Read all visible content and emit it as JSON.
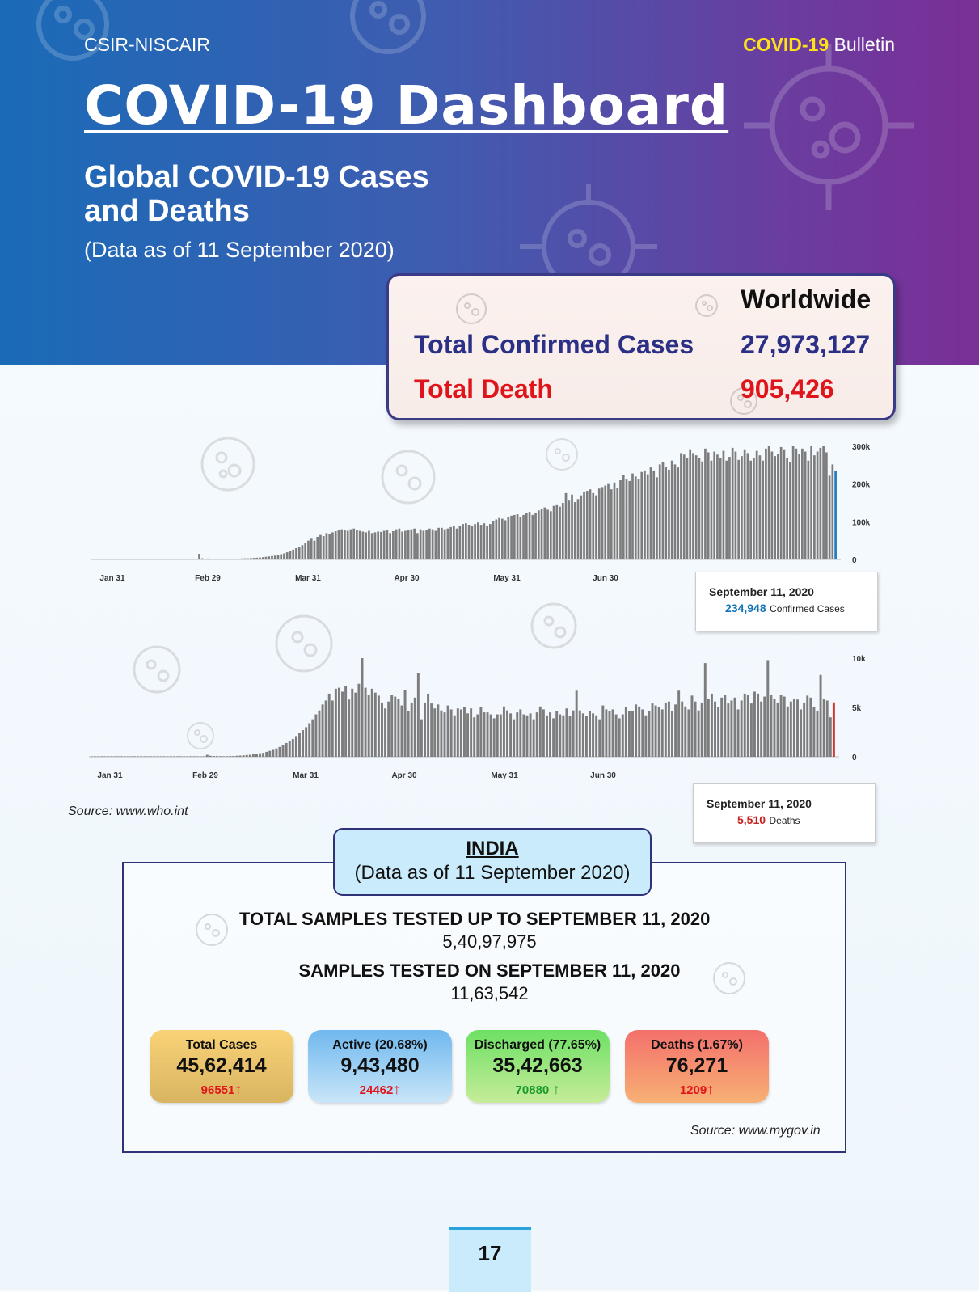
{
  "header": {
    "org": "CSIR-NISCAIR",
    "bulletin_highlight": "COVID-19",
    "bulletin_rest": " Bulletin",
    "title": "COVID-19 Dashboard",
    "subtitle_line1": "Global COVID-19 Cases",
    "subtitle_line2": "and Deaths",
    "as_of": "(Data as of 11 September 2020)"
  },
  "worldwide": {
    "heading": "Worldwide",
    "confirmed_label": "Total Confirmed Cases",
    "confirmed_value": "27,973,127",
    "death_label": "Total Death",
    "death_value": "905,426"
  },
  "chart_data": [
    {
      "type": "bar",
      "x_tick_labels": [
        "Jan 31",
        "Feb 29",
        "Mar 31",
        "Apr 30",
        "May 31",
        "Jun 30"
      ],
      "y_tick_labels": [
        "300k",
        "200k",
        "100k",
        "0"
      ],
      "ylim": [
        0,
        300000
      ],
      "start_date": "2020-01-11",
      "values": [
        0,
        0,
        0,
        0,
        0,
        0,
        0,
        0,
        0,
        0,
        0,
        0,
        0,
        0,
        0,
        0,
        0,
        0,
        0,
        0,
        0,
        0,
        0,
        0,
        0,
        0,
        0,
        0,
        0,
        0,
        0,
        0,
        0,
        0,
        0,
        15000,
        3000,
        2000,
        2500,
        2000,
        2000,
        2000,
        2000,
        2000,
        2000,
        2000,
        2000,
        2000,
        2000,
        2500,
        3000,
        3000,
        3500,
        4000,
        4500,
        5000,
        6000,
        7000,
        8000,
        9000,
        10000,
        12000,
        14000,
        16000,
        19000,
        22000,
        26000,
        30000,
        34000,
        38000,
        45000,
        50000,
        55000,
        50000,
        60000,
        65000,
        62000,
        70000,
        68000,
        72000,
        75000,
        77000,
        80000,
        78000,
        76000,
        80000,
        82000,
        78000,
        76000,
        74000,
        72000,
        76000,
        70000,
        72000,
        74000,
        73000,
        76000,
        78000,
        70000,
        75000,
        80000,
        82000,
        74000,
        76000,
        78000,
        80000,
        82000,
        70000,
        80000,
        76000,
        78000,
        82000,
        80000,
        76000,
        84000,
        84000,
        80000,
        82000,
        86000,
        88000,
        82000,
        90000,
        94000,
        96000,
        92000,
        88000,
        94000,
        98000,
        92000,
        96000,
        90000,
        94000,
        102000,
        106000,
        110000,
        108000,
        104000,
        112000,
        116000,
        118000,
        120000,
        112000,
        118000,
        124000,
        126000,
        118000,
        124000,
        130000,
        134000,
        138000,
        132000,
        128000,
        142000,
        146000,
        140000,
        150000,
        176000,
        156000,
        172000,
        152000,
        160000,
        170000,
        178000,
        182000,
        186000,
        176000,
        170000,
        188000,
        192000,
        196000,
        200000,
        186000,
        204000,
        190000,
        210000,
        224000,
        212000,
        208000,
        228000,
        220000,
        214000,
        232000,
        236000,
        226000,
        244000,
        236000,
        218000,
        252000,
        258000,
        246000,
        238000,
        262000,
        252000,
        244000,
        282000,
        278000,
        268000,
        292000,
        282000,
        276000,
        268000,
        260000,
        294000,
        284000,
        262000,
        286000,
        278000,
        270000,
        288000,
        262000,
        272000,
        296000,
        286000,
        264000,
        274000,
        292000,
        282000,
        262000,
        270000,
        288000,
        276000,
        262000,
        294000,
        300000,
        286000,
        274000,
        280000,
        298000,
        292000,
        270000,
        258000,
        300000,
        294000,
        280000,
        294000,
        286000,
        262000,
        300000,
        276000,
        286000,
        296000,
        306000,
        284000,
        222000,
        252000,
        234948
      ],
      "highlight": {
        "date": "September 11, 2020",
        "value": "234,948",
        "unit": "Confirmed Cases"
      }
    },
    {
      "type": "bar",
      "x_tick_labels": [
        "Jan 31",
        "Feb 29",
        "Mar 31",
        "Apr 30",
        "May 31",
        "Jun 30"
      ],
      "y_tick_labels": [
        "10k",
        "5k",
        "0"
      ],
      "ylim": [
        0,
        10000
      ],
      "start_date": "2020-01-11",
      "values": [
        0,
        0,
        0,
        0,
        0,
        0,
        0,
        0,
        0,
        0,
        0,
        0,
        0,
        0,
        0,
        0,
        0,
        0,
        0,
        0,
        0,
        0,
        0,
        0,
        0,
        0,
        0,
        0,
        0,
        0,
        0,
        0,
        0,
        0,
        0,
        200,
        100,
        80,
        70,
        60,
        50,
        60,
        70,
        80,
        100,
        120,
        150,
        180,
        200,
        250,
        300,
        350,
        400,
        500,
        600,
        700,
        850,
        1000,
        1200,
        1400,
        1600,
        1800,
        2100,
        2400,
        2700,
        3000,
        3400,
        3800,
        4300,
        4700,
        5300,
        5700,
        6400,
        5700,
        6900,
        7000,
        6600,
        7200,
        5800,
        6900,
        6500,
        7400,
        10000,
        7000,
        6300,
        6900,
        6500,
        6200,
        5500,
        4900,
        5600,
        6300,
        6100,
        5900,
        5200,
        6800,
        4600,
        5500,
        6000,
        8500,
        3800,
        5500,
        6400,
        5400,
        4900,
        5300,
        4700,
        4500,
        5200,
        4800,
        4200,
        4900,
        4800,
        5000,
        4400,
        4900,
        4000,
        4300,
        5000,
        4500,
        4500,
        4300,
        3900,
        4300,
        4300,
        5100,
        4700,
        4400,
        3800,
        4500,
        4800,
        4300,
        4200,
        4400,
        3800,
        4500,
        5100,
        4800,
        4200,
        4500,
        3900,
        4600,
        4300,
        4200,
        4900,
        4100,
        4700,
        6700,
        4700,
        4400,
        4100,
        4600,
        4400,
        4200,
        3800,
        5200,
        4800,
        4600,
        4800,
        4300,
        3900,
        4300,
        5000,
        4600,
        4600,
        5300,
        5100,
        4800,
        4200,
        4600,
        5400,
        5200,
        5000,
        4800,
        5500,
        5600,
        4600,
        5300,
        6700,
        5600,
        5100,
        4800,
        6200,
        5600,
        4700,
        5500,
        9500,
        5900,
        6400,
        5600,
        5000,
        6000,
        6300,
        5400,
        5700,
        6000,
        4800,
        5700,
        6400,
        6300,
        5400,
        6600,
        6400,
        5600,
        6100,
        9800,
        6300,
        5900,
        5500,
        6300,
        6100,
        5100,
        5600,
        5900,
        5800,
        4800,
        5500,
        6200,
        6000,
        5000,
        4600,
        8300,
        5900,
        5700,
        4000,
        5510
      ],
      "highlight": {
        "date": "September 11, 2020",
        "value": "5,510",
        "unit": "Deaths"
      }
    }
  ],
  "source_global": "Source: www.who.int",
  "india": {
    "heading": "INDIA",
    "as_of": "(Data as of 11 September 2020)",
    "total_samples_label": "TOTAL SAMPLES TESTED UP TO SEPTEMBER 11, 2020",
    "total_samples_value": "5,40,97,975",
    "day_samples_label": "SAMPLES TESTED ON SEPTEMBER 11, 2020",
    "day_samples_value": "11,63,542",
    "cards": [
      {
        "label": "Total Cases",
        "value": "45,62,414",
        "change": "96551",
        "change_color": "#e0141b"
      },
      {
        "label": "Active (20.68%)",
        "value": "9,43,480",
        "change": "24462",
        "change_color": "#e0141b"
      },
      {
        "label": "Discharged (77.65%)",
        "value": "35,42,663",
        "change": "70880",
        "change_color": "#1a9a2c"
      },
      {
        "label": "Deaths (1.67%)",
        "value": "76,271",
        "change": "1209",
        "change_color": "#e0141b"
      }
    ],
    "source": "Source: www.mygov.in"
  },
  "page_number": "17"
}
